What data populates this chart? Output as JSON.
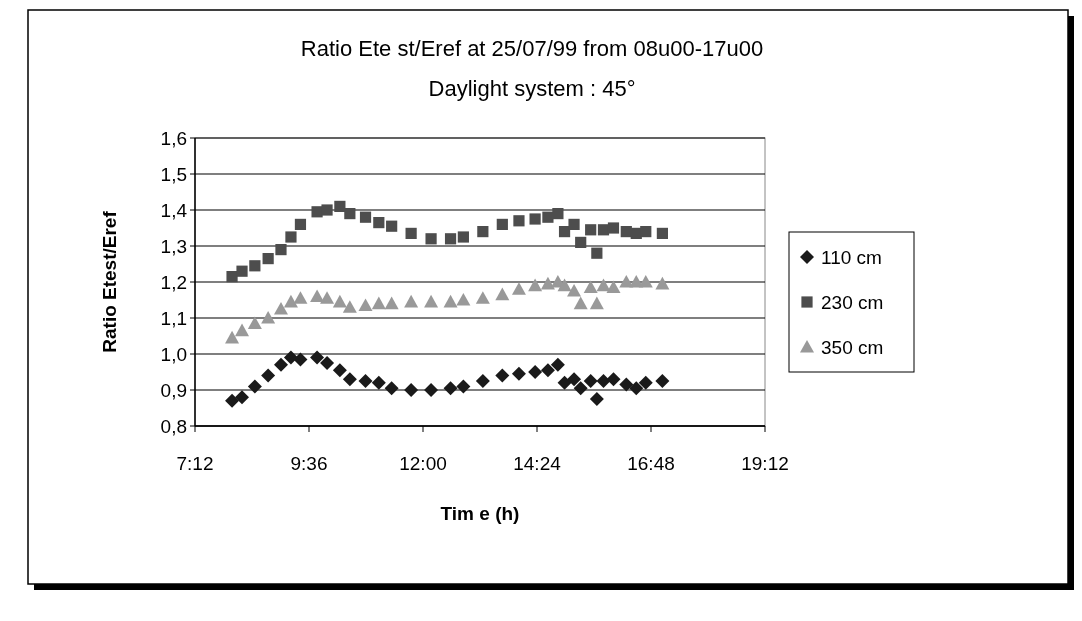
{
  "chart_data": {
    "type": "scatter",
    "title": "Ratio Ete st/Eref at 25/07/99 from 08u00-17u00",
    "subtitle": "Daylight system : 45°",
    "xlabel": "Tim e (h)",
    "ylabel": "Ratio Etest/Eref",
    "x": [
      7.98,
      8.19,
      8.46,
      8.74,
      9.01,
      9.22,
      9.42,
      9.77,
      9.98,
      10.25,
      10.46,
      10.79,
      11.07,
      11.34,
      11.75,
      12.17,
      12.58,
      12.85,
      13.26,
      13.67,
      14.02,
      14.36,
      14.63,
      14.84,
      14.98,
      15.18,
      15.32,
      15.53,
      15.66,
      15.8,
      16.01,
      16.28,
      16.49,
      16.69,
      17.04
    ],
    "series": [
      {
        "name": "110 cm",
        "color": "#1a1a1a",
        "marker": "diamond",
        "values": [
          0.87,
          0.88,
          0.91,
          0.94,
          0.97,
          0.99,
          0.985,
          0.99,
          0.975,
          0.955,
          0.93,
          0.925,
          0.92,
          0.905,
          0.9,
          0.9,
          0.905,
          0.91,
          0.925,
          0.94,
          0.945,
          0.95,
          0.955,
          0.97,
          0.92,
          0.93,
          0.905,
          0.925,
          0.875,
          0.925,
          0.93,
          0.915,
          0.905,
          0.92,
          0.925
        ]
      },
      {
        "name": "230 cm",
        "color": "#4d4d4d",
        "marker": "square",
        "values": [
          1.215,
          1.23,
          1.245,
          1.265,
          1.29,
          1.325,
          1.36,
          1.395,
          1.4,
          1.41,
          1.39,
          1.38,
          1.365,
          1.355,
          1.335,
          1.32,
          1.32,
          1.325,
          1.34,
          1.36,
          1.37,
          1.375,
          1.38,
          1.39,
          1.34,
          1.36,
          1.31,
          1.345,
          1.28,
          1.345,
          1.35,
          1.34,
          1.335,
          1.34,
          1.335
        ]
      },
      {
        "name": "350 cm",
        "color": "#999999",
        "marker": "triangle",
        "values": [
          1.045,
          1.065,
          1.085,
          1.1,
          1.125,
          1.145,
          1.155,
          1.16,
          1.155,
          1.145,
          1.13,
          1.135,
          1.14,
          1.14,
          1.145,
          1.145,
          1.145,
          1.15,
          1.155,
          1.165,
          1.18,
          1.19,
          1.195,
          1.2,
          1.19,
          1.175,
          1.14,
          1.185,
          1.14,
          1.19,
          1.185,
          1.2,
          1.2,
          1.2,
          1.195
        ]
      }
    ],
    "xlim": [
      7.2,
      19.2
    ],
    "xticks": [
      {
        "value": 7.2,
        "label": "7:12"
      },
      {
        "value": 9.6,
        "label": "9:36"
      },
      {
        "value": 12,
        "label": "12:00"
      },
      {
        "value": 14.4,
        "label": "14:24"
      },
      {
        "value": 16.8,
        "label": "16:48"
      },
      {
        "value": 19.2,
        "label": "19:12"
      }
    ],
    "ylim": [
      0.8,
      1.6
    ],
    "yticks": [
      {
        "value": 0.8,
        "label": "0,8"
      },
      {
        "value": 0.9,
        "label": "0,9"
      },
      {
        "value": 1.0,
        "label": "1,0"
      },
      {
        "value": 1.1,
        "label": "1,1"
      },
      {
        "value": 1.2,
        "label": "1,2"
      },
      {
        "value": 1.3,
        "label": "1,3"
      },
      {
        "value": 1.4,
        "label": "1,4"
      },
      {
        "value": 1.5,
        "label": "1,5"
      },
      {
        "value": 1.6,
        "label": "1,6"
      }
    ],
    "grid": "y",
    "legend": "right"
  }
}
